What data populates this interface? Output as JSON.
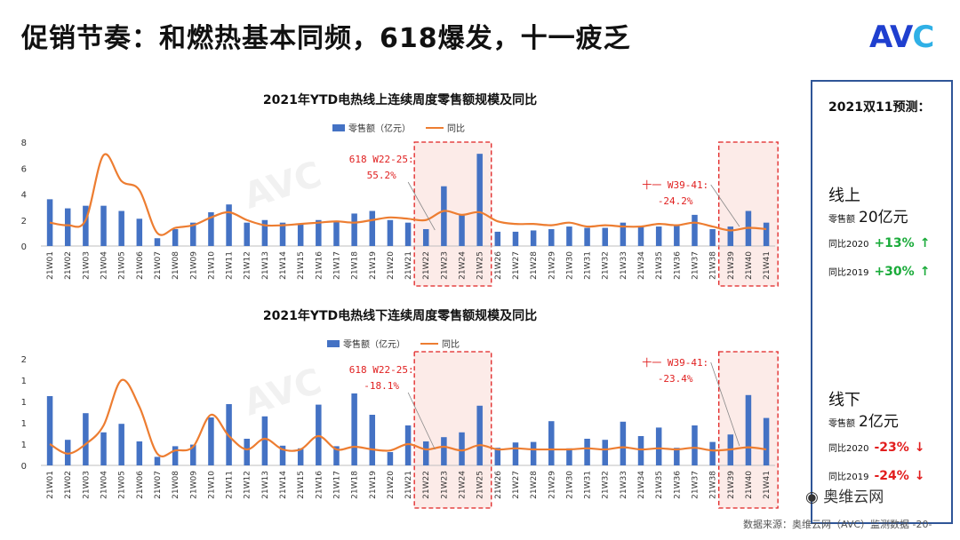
{
  "title": "促销节奏：和燃热基本同频，618爆发，十一疲乏",
  "logo": {
    "text_a": "AV",
    "text_c": "C"
  },
  "source": "数据来源：奥维云网（AVC）监测数据 -20-",
  "watermark": "奥维云网",
  "panel": {
    "header": "2021双11预测：",
    "online": {
      "label": "线上",
      "amount_label": "零售额",
      "amount_value": "20亿元",
      "yoy2020_label": "同比2020",
      "yoy2020_value": "+13%",
      "yoy2019_label": "同比2019",
      "yoy2019_value": "+30%"
    },
    "offline": {
      "label": "线下",
      "amount_label": "零售额",
      "amount_value": "2亿元",
      "yoy2020_label": "同比2020",
      "yoy2020_value": "-23%",
      "yoy2019_label": "同比2019",
      "yoy2019_value": "-24%"
    }
  },
  "chart_data": [
    {
      "type": "bar+line",
      "title": "2021年YTD电热线上连续周度零售额规模及同比",
      "legend": {
        "bar": "零售额（亿元）",
        "line": "同比"
      },
      "ylim": [
        0,
        8
      ],
      "yticks": [
        "0",
        "2",
        "4",
        "6",
        "8"
      ],
      "categories": [
        "21W01",
        "21W02",
        "21W03",
        "21W04",
        "21W05",
        "21W06",
        "21W07",
        "21W08",
        "21W09",
        "21W10",
        "21W11",
        "21W12",
        "21W13",
        "21W14",
        "21W15",
        "21W16",
        "21W17",
        "21W18",
        "21W19",
        "21W20",
        "21W21",
        "21W22",
        "21W23",
        "21W24",
        "21W25",
        "21W26",
        "21W27",
        "21W28",
        "21W29",
        "21W30",
        "21W31",
        "21W32",
        "21W33",
        "21W34",
        "21W35",
        "21W36",
        "21W37",
        "21W38",
        "21W39",
        "21W40",
        "21W41"
      ],
      "values": [
        3.6,
        2.9,
        3.1,
        3.1,
        2.7,
        2.1,
        0.6,
        1.3,
        1.8,
        2.6,
        3.2,
        1.8,
        2.0,
        1.8,
        1.7,
        2.0,
        1.9,
        2.5,
        2.7,
        2.0,
        1.8,
        1.3,
        4.6,
        2.4,
        7.1,
        1.1,
        1.1,
        1.2,
        1.3,
        1.5,
        1.4,
        1.4,
        1.8,
        1.5,
        1.5,
        1.6,
        2.4,
        1.3,
        1.5,
        2.7,
        1.8
      ],
      "line_values": [
        1.8,
        1.6,
        2.0,
        7.0,
        5.0,
        4.3,
        1.0,
        1.4,
        1.6,
        2.2,
        2.6,
        2.0,
        1.6,
        1.6,
        1.7,
        1.8,
        1.9,
        1.8,
        2.0,
        2.2,
        2.1,
        2.0,
        2.7,
        2.4,
        2.6,
        1.9,
        1.7,
        1.7,
        1.6,
        1.8,
        1.5,
        1.6,
        1.5,
        1.5,
        1.7,
        1.6,
        1.8,
        1.5,
        1.2,
        1.4,
        1.3
      ],
      "annotations": [
        {
          "text1": "618 W22-25:",
          "text2": "55.2%"
        },
        {
          "text1": "十一 W39-41:",
          "text2": "-24.2%"
        }
      ]
    },
    {
      "type": "bar+line",
      "title": "2021年YTD电热线下连续周度零售额规模及同比",
      "legend": {
        "bar": "零售额（亿元）",
        "line": "同比"
      },
      "ylim": [
        0,
        2
      ],
      "yticks": [
        "0",
        "1",
        "1",
        "1",
        "1",
        "2"
      ],
      "categories": [
        "21W01",
        "21W02",
        "21W03",
        "21W04",
        "21W05",
        "21W06",
        "21W07",
        "21W08",
        "21W09",
        "21W10",
        "21W11",
        "21W12",
        "21W13",
        "21W14",
        "21W15",
        "21W16",
        "21W17",
        "21W18",
        "21W19",
        "21W20",
        "21W21",
        "21W22",
        "21W23",
        "21W24",
        "21W25",
        "21W26",
        "21W27",
        "21W28",
        "21W29",
        "21W30",
        "21W31",
        "21W32",
        "21W33",
        "21W34",
        "21W35",
        "21W36",
        "21W37",
        "21W38",
        "21W39",
        "21W40",
        "21W41"
      ],
      "values": [
        1.3,
        0.48,
        0.98,
        0.62,
        0.78,
        0.45,
        0.16,
        0.36,
        0.39,
        0.9,
        1.15,
        0.5,
        0.92,
        0.37,
        0.32,
        1.14,
        0.36,
        1.35,
        0.95,
        0.25,
        0.75,
        0.45,
        0.53,
        0.62,
        1.12,
        0.33,
        0.43,
        0.44,
        0.83,
        0.32,
        0.5,
        0.48,
        0.82,
        0.55,
        0.71,
        0.33,
        0.75,
        0.44,
        0.58,
        1.32,
        0.89
      ],
      "line_values": [
        0.4,
        0.22,
        0.4,
        0.75,
        1.6,
        1.1,
        0.22,
        0.28,
        0.35,
        0.95,
        0.55,
        0.3,
        0.5,
        0.3,
        0.3,
        0.55,
        0.3,
        0.35,
        0.3,
        0.28,
        0.4,
        0.3,
        0.35,
        0.28,
        0.38,
        0.3,
        0.32,
        0.3,
        0.3,
        0.3,
        0.32,
        0.3,
        0.34,
        0.3,
        0.32,
        0.3,
        0.33,
        0.28,
        0.3,
        0.34,
        0.3
      ],
      "annotations": [
        {
          "text1": "618 W22-25:",
          "text2": "-18.1%"
        },
        {
          "text1": "十一 W39-41:",
          "text2": "-23.4%"
        }
      ]
    }
  ]
}
